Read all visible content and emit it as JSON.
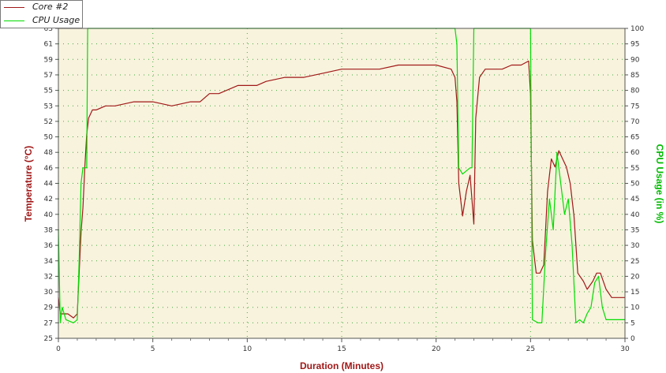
{
  "chart_data": {
    "type": "line",
    "title": "",
    "xlabel": "Duration (Minutes)",
    "ylabel": "Temperature (°C)",
    "y2label": "CPU Usage (in %)",
    "xlim": [
      0,
      30
    ],
    "ylim": [
      25,
      63
    ],
    "y2lim": [
      0,
      100
    ],
    "x_ticks": [
      "0",
      "5",
      "10",
      "15",
      "20",
      "25",
      "30"
    ],
    "y_ticks": [
      "25",
      "27",
      "29",
      "30",
      "32",
      "34",
      "36",
      "38",
      "40",
      "42",
      "44",
      "46",
      "48",
      "50",
      "52",
      "53",
      "55",
      "57",
      "59",
      "61",
      "63"
    ],
    "y2_ticks": [
      "0",
      "5",
      "10",
      "15",
      "20",
      "25",
      "30",
      "35",
      "40",
      "45",
      "50",
      "55",
      "60",
      "65",
      "70",
      "75",
      "80",
      "85",
      "90",
      "95",
      "100"
    ],
    "grid": true,
    "legend_position": "top-left",
    "background_color": "#f8f3dd",
    "series": [
      {
        "name": "Core #2",
        "axis": "left",
        "color": "#a01818",
        "x": [
          0,
          0.1,
          0.3,
          0.5,
          0.8,
          1.0,
          1.1,
          1.2,
          1.3,
          1.4,
          1.5,
          1.6,
          1.8,
          2.0,
          2.5,
          3.0,
          4.0,
          5.0,
          6.0,
          7.0,
          7.5,
          8.0,
          8.5,
          9.0,
          9.5,
          10.0,
          10.5,
          11.0,
          12.0,
          13.0,
          14.0,
          15.0,
          16.0,
          17.0,
          18.0,
          19.0,
          20.0,
          20.8,
          21.0,
          21.1,
          21.2,
          21.4,
          21.6,
          21.8,
          21.9,
          22.0,
          22.1,
          22.3,
          22.6,
          23.0,
          23.5,
          24.0,
          24.5,
          24.9,
          25.0,
          25.1,
          25.3,
          25.5,
          25.7,
          25.9,
          26.1,
          26.3,
          26.5,
          26.7,
          26.9,
          27.1,
          27.3,
          27.5,
          27.8,
          28.0,
          28.3,
          28.5,
          28.7,
          29.0,
          29.3,
          29.6,
          30.0
        ],
        "values": [
          30,
          28,
          28,
          28,
          27.5,
          28,
          33,
          38,
          41,
          46,
          50,
          52,
          53,
          53,
          53.5,
          53.5,
          54,
          54,
          53.5,
          54,
          54,
          55,
          55,
          55.5,
          56,
          56,
          56,
          56.5,
          57,
          57,
          57.5,
          58,
          58,
          58,
          58.5,
          58.5,
          58.5,
          58,
          57,
          54,
          44,
          40,
          43,
          45,
          42,
          39,
          52,
          57,
          58,
          58,
          58,
          58.5,
          58.5,
          59,
          55,
          37,
          33,
          33,
          34,
          43,
          47,
          46,
          48,
          47,
          46,
          44,
          40,
          33,
          32,
          31,
          32,
          33,
          33,
          31,
          30,
          30,
          30
        ]
      },
      {
        "name": "CPU Usage",
        "axis": "right",
        "color": "#00dd00",
        "x": [
          0,
          0.1,
          0.2,
          0.4,
          0.8,
          1.0,
          1.1,
          1.2,
          1.3,
          1.4,
          1.5,
          1.55,
          2.0,
          5.0,
          10.0,
          15.0,
          20.0,
          21.0,
          21.1,
          21.2,
          21.4,
          21.8,
          21.9,
          22.0,
          22.1,
          24.9,
          25.0,
          25.1,
          25.4,
          25.6,
          25.8,
          26.0,
          26.2,
          26.4,
          26.6,
          26.8,
          27.0,
          27.2,
          27.4,
          27.6,
          27.8,
          28.0,
          28.2,
          28.4,
          28.6,
          28.8,
          29.0,
          29.5,
          30.0
        ],
        "values": [
          35,
          5,
          10,
          6,
          5,
          6,
          25,
          50,
          55,
          55,
          55,
          100,
          100,
          100,
          100,
          100,
          100,
          100,
          95,
          55,
          53,
          55,
          55,
          100,
          100,
          100,
          100,
          6,
          5,
          5,
          28,
          45,
          35,
          60,
          50,
          40,
          45,
          30,
          5,
          6,
          5,
          8,
          10,
          18,
          20,
          10,
          6,
          6,
          6
        ]
      }
    ]
  }
}
